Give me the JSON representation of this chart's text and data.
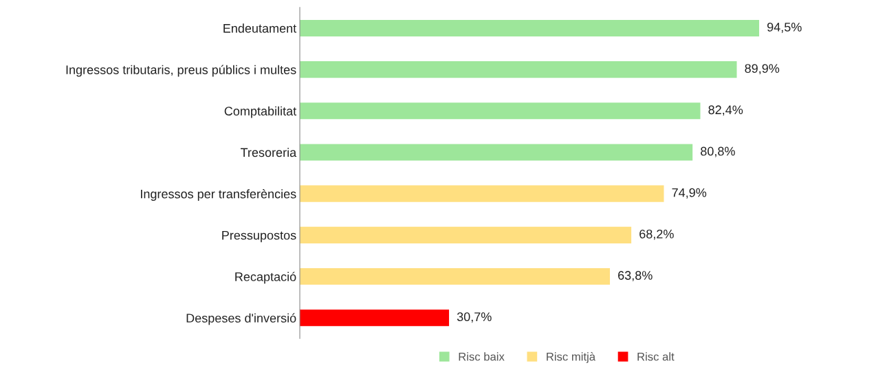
{
  "chart_data": {
    "type": "bar",
    "orientation": "horizontal",
    "categories": [
      "Endeutament",
      "Ingressos tributaris, preus públics i multes",
      "Comptabilitat",
      "Tresoreria",
      "Ingressos per transferències",
      "Pressupostos",
      "Recaptació",
      "Despeses d'inversió"
    ],
    "series": [
      {
        "name": "Risc baix",
        "color": "#9de69a",
        "values": [
          94.5,
          89.9,
          82.4,
          80.8,
          null,
          null,
          null,
          null
        ],
        "value_labels": [
          "94,5%",
          "89,9%",
          "82,4%",
          "80,8%",
          null,
          null,
          null,
          null
        ]
      },
      {
        "name": "Risc mitjà",
        "color": "#ffdf80",
        "values": [
          null,
          null,
          null,
          null,
          74.9,
          68.2,
          63.8,
          null
        ],
        "value_labels": [
          null,
          null,
          null,
          null,
          "74,9%",
          "68,2%",
          "63,8%",
          null
        ]
      },
      {
        "name": "Risc alt",
        "color": "#ff0000",
        "values": [
          null,
          null,
          null,
          null,
          null,
          null,
          null,
          30.7
        ],
        "value_labels": [
          null,
          null,
          null,
          null,
          null,
          null,
          null,
          "30,7%"
        ]
      }
    ],
    "tick_labels": "y",
    "legend": "bottom",
    "grid": false
  }
}
